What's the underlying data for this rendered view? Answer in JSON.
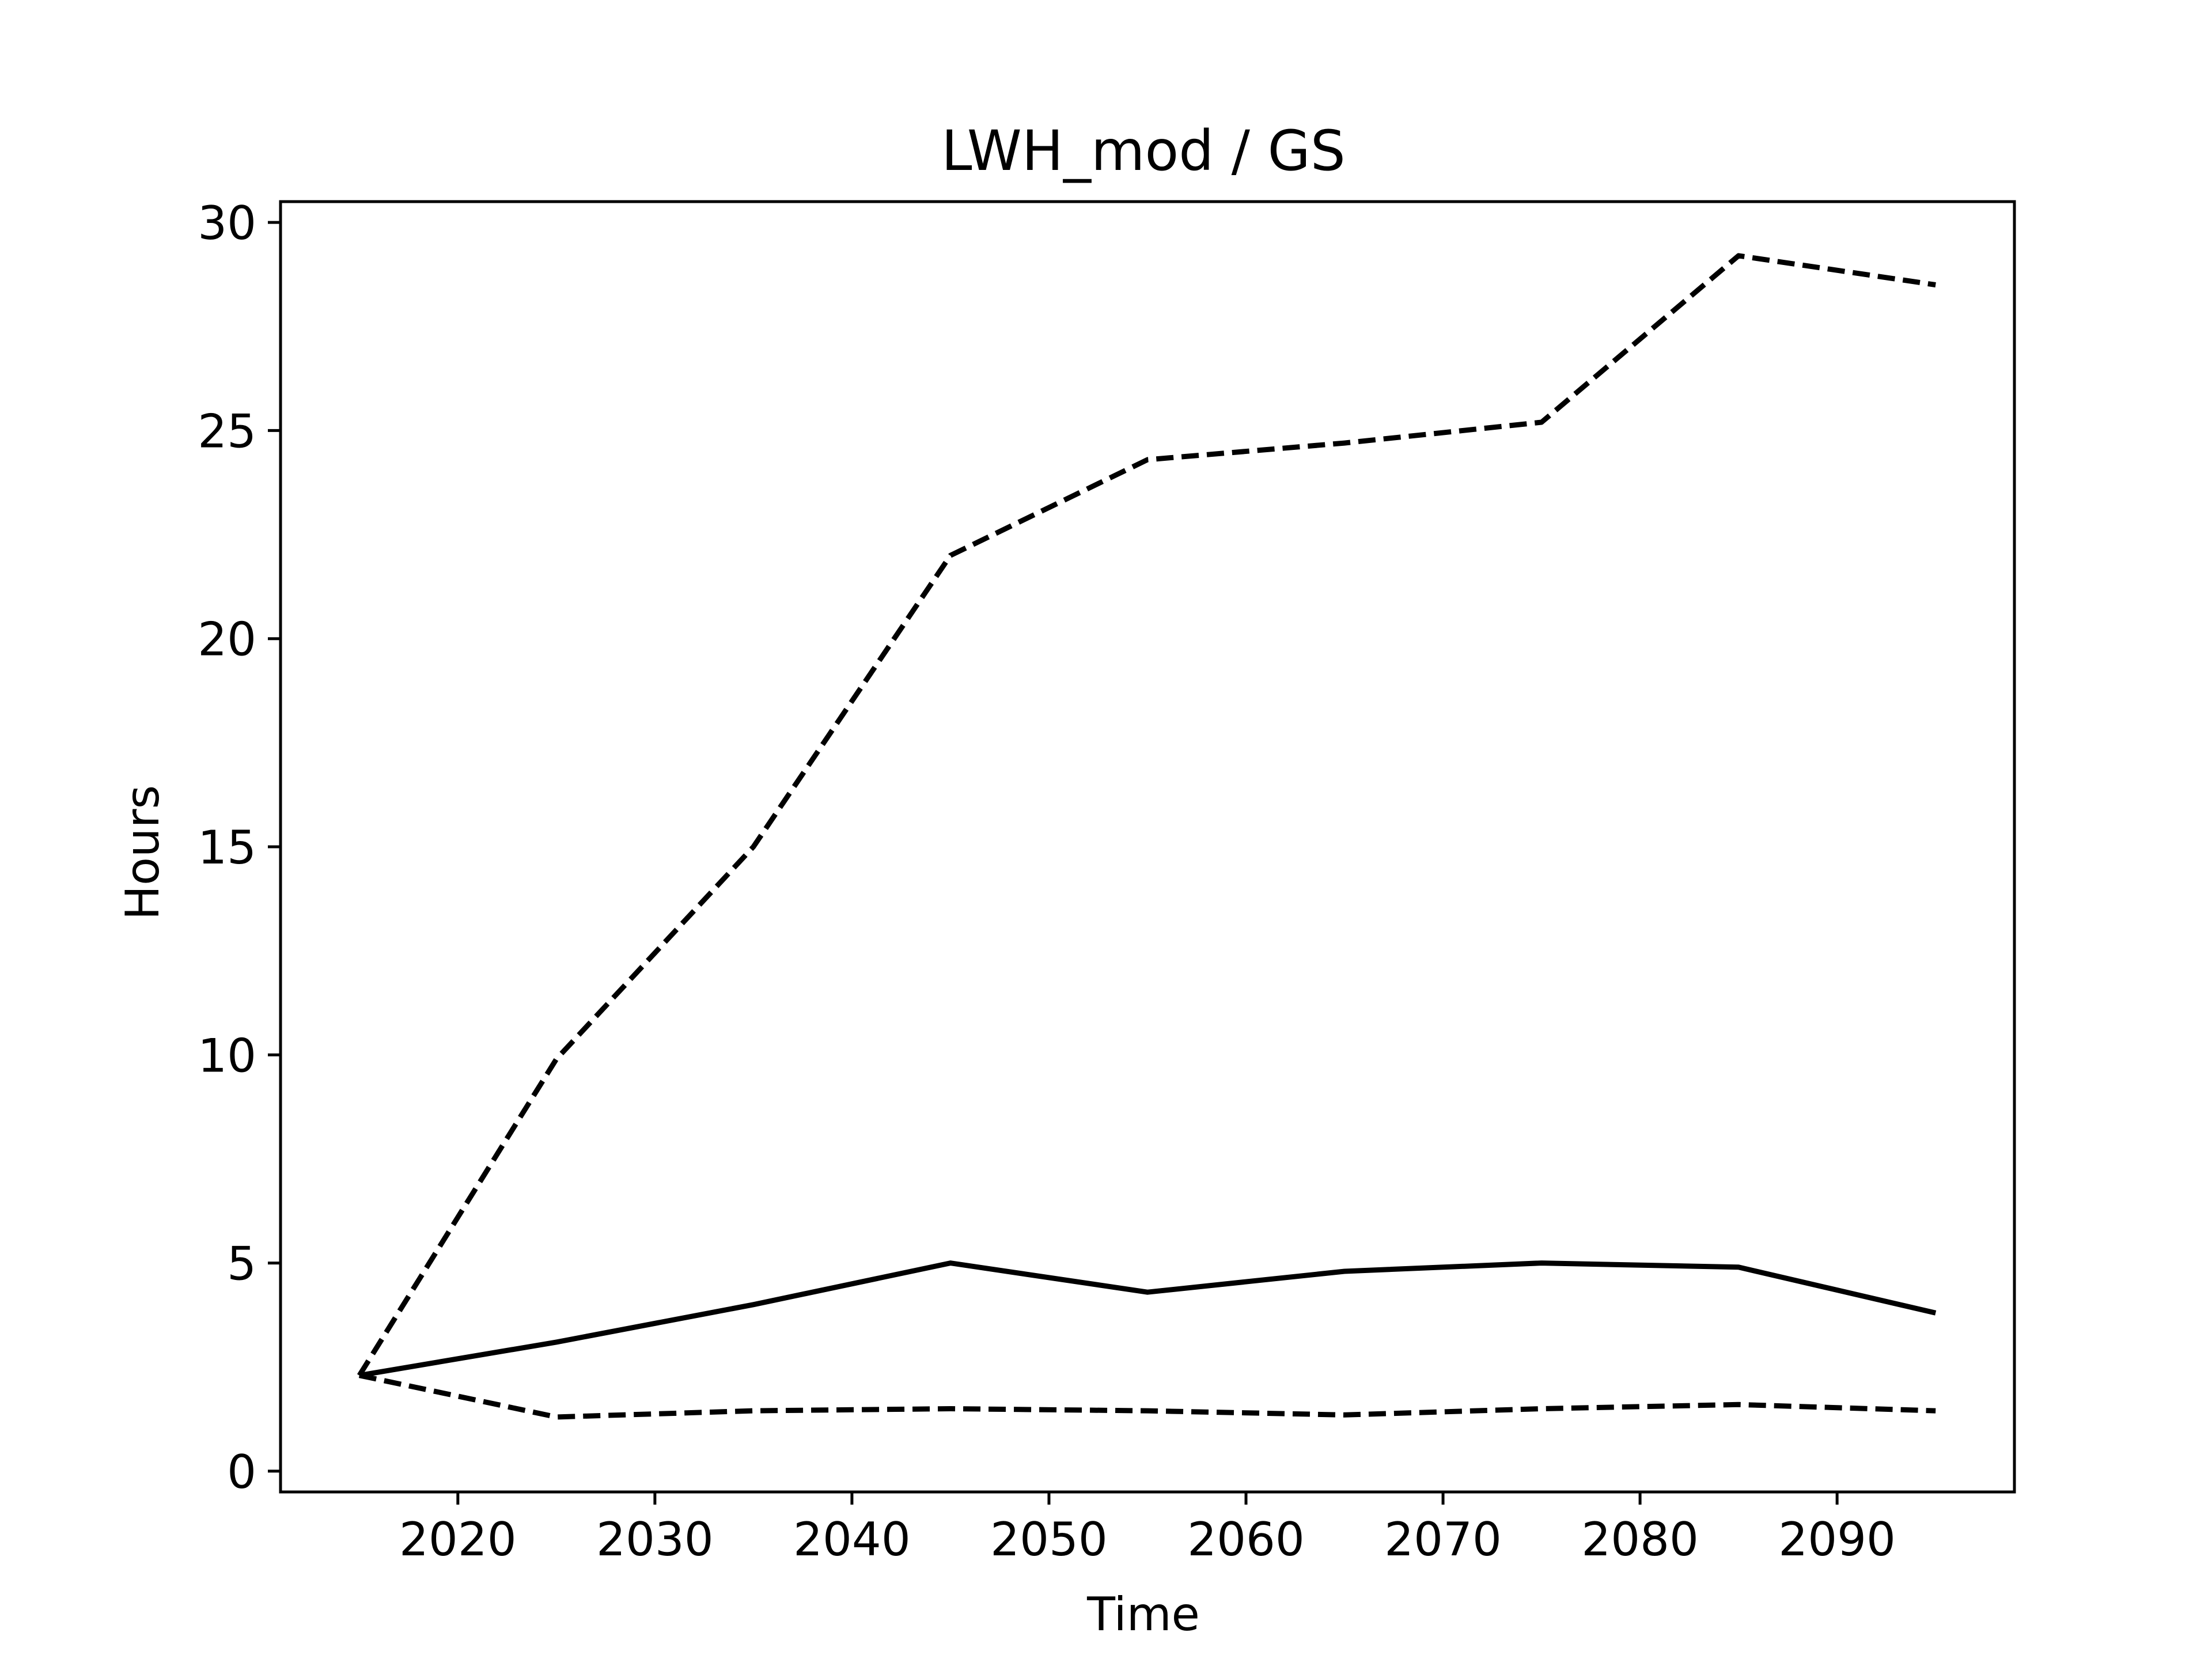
{
  "chart_data": {
    "type": "line",
    "title": "LWH_mod / GS",
    "xlabel": "Time",
    "ylabel": "Hours",
    "xlim": [
      2011,
      2099
    ],
    "ylim": [
      -0.5,
      30.5
    ],
    "xticks": [
      2020,
      2030,
      2040,
      2050,
      2060,
      2070,
      2080,
      2090
    ],
    "yticks": [
      0,
      5,
      10,
      15,
      20,
      25,
      30
    ],
    "grid": false,
    "x": [
      2015,
      2025,
      2035,
      2045,
      2055,
      2065,
      2075,
      2085,
      2095
    ],
    "series": [
      {
        "style": "dashed",
        "color": "#000000",
        "values": [
          2.3,
          9.9,
          15.0,
          22.0,
          24.3,
          24.7,
          25.2,
          29.2,
          28.5
        ]
      },
      {
        "style": "solid",
        "color": "#000000",
        "values": [
          2.3,
          3.1,
          4.0,
          5.0,
          4.3,
          4.8,
          5.0,
          4.9,
          3.8
        ]
      },
      {
        "style": "dashed",
        "color": "#000000",
        "values": [
          2.3,
          1.3,
          1.45,
          1.5,
          1.45,
          1.35,
          1.5,
          1.6,
          1.45
        ]
      }
    ]
  }
}
